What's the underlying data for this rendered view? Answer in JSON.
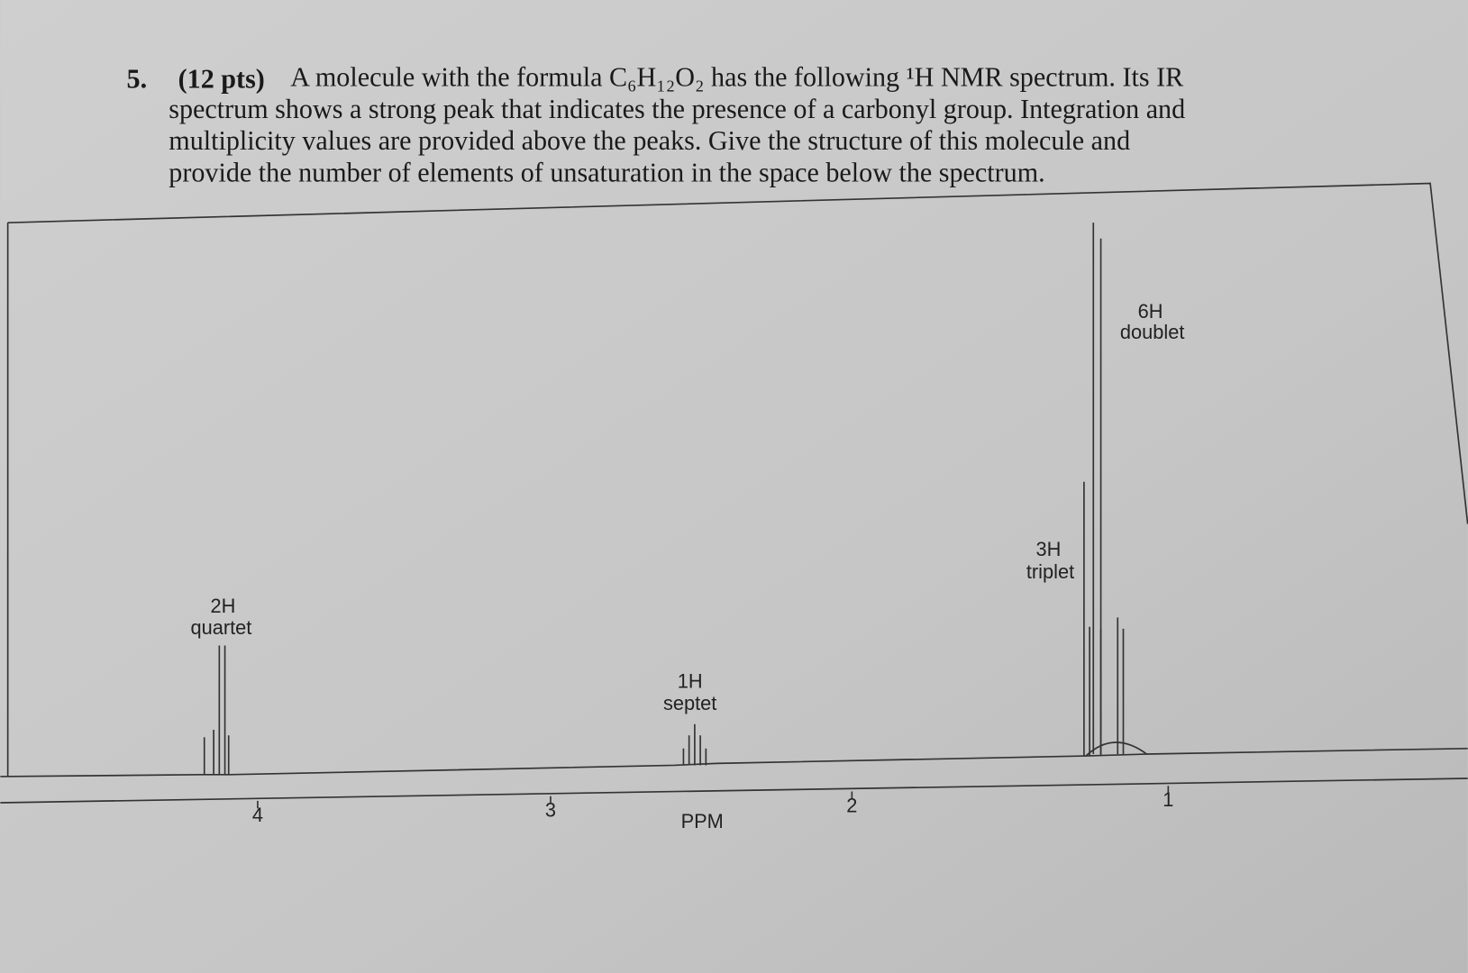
{
  "question": {
    "number": "5.",
    "points": "(12 pts)",
    "lines": [
      "A molecule with the formula C₆H₁₂O₂ has the following ¹H NMR spectrum.  Its IR",
      "spectrum shows a strong peak that indicates the presence of a carbonyl group. Integration and",
      "multiplicity values are provided above the peaks.  Give the structure of this molecule and",
      "provide the number of elements of unsaturation in the space below the spectrum."
    ]
  },
  "spectrum": {
    "peaks": [
      {
        "integration": "2H",
        "multiplicity": "quartet"
      },
      {
        "integration": "1H",
        "multiplicity": "septet"
      },
      {
        "integration": "3H",
        "multiplicity": "triplet"
      },
      {
        "integration": "6H",
        "multiplicity": "doublet"
      }
    ],
    "axis": {
      "ticks": [
        "4",
        "3",
        "2",
        "1"
      ],
      "label": "PPM"
    }
  }
}
